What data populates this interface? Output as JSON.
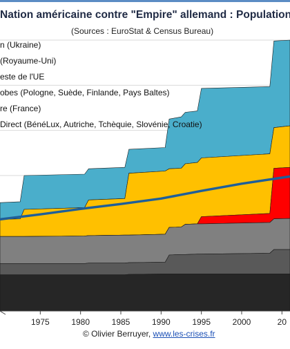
{
  "title": "Nation américaine contre \"Empire\" allemand : Population",
  "subtitle": "(Sources : EuroStat & Census Bureau)",
  "credit": {
    "text": "© Olivier Berruyer, ",
    "link": "www.les-crises.fr"
  },
  "colors": {
    "background": "#ffffff",
    "border": "#5b8cc4",
    "ukraine": "#ffffff",
    "royaume_uni": "#ffffff",
    "reste_ue": "#4aaecb",
    "satellites": "#ffc000",
    "france": "#ff0000",
    "direct": "#808080",
    "direct_dark": "#595959",
    "germany": "#262626",
    "usa_line": "#1f5f99",
    "gridline": "#d9d9d9"
  },
  "chart_data": {
    "type": "area",
    "title": "Nation américaine contre \"Empire\" allemand : Population",
    "subtitle": "(Sources : EuroStat & Census Bureau)",
    "x_tick_labels": [
      "1975",
      "1980",
      "1985",
      "1990",
      "1995",
      "2000",
      "20"
    ],
    "xlim": [
      1970,
      2006
    ],
    "ylim": [
      0,
      600
    ],
    "ylabel": "",
    "xlabel": "",
    "legend": [
      {
        "label": "n (Ukraine)",
        "color": "#ffffff"
      },
      {
        "label": "(Royaume-Uni)",
        "color": "#ffffff"
      },
      {
        "label": "este de l'UE",
        "color": "#4aaecb"
      },
      {
        "label": "obes (Pologne, Suède, Finlande, Pays Baltes)",
        "color": "#ffc000"
      },
      {
        "label": "re (France)",
        "color": "#ff0000"
      },
      {
        "label": "Direct (BénéLux, Autriche, Tchèquie, Slovénie, Croatie)",
        "color": "#808080"
      }
    ],
    "legend_position": "top-left",
    "x": [
      1970,
      1972.5,
      1973,
      1980.5,
      1981,
      1985.5,
      1986,
      1990.5,
      1991,
      1992.5,
      1993,
      1994.5,
      1995,
      2003.5,
      2004,
      2006
    ],
    "series": [
      {
        "key": "germany",
        "values": [
          80,
          80,
          80,
          80,
          80,
          80,
          81,
          82,
          82,
          82,
          82,
          82,
          82,
          82,
          82,
          82
        ]
      },
      {
        "key": "direct_dark",
        "values": [
          105,
          105,
          105,
          105,
          106,
          106,
          107,
          108,
          124,
          125,
          125,
          126,
          126,
          128,
          136,
          136
        ]
      },
      {
        "key": "direct",
        "values": [
          165,
          165,
          165,
          166,
          167,
          168,
          168,
          170,
          185,
          186,
          192,
          193,
          193,
          196,
          204,
          205
        ]
      },
      {
        "key": "france",
        "values": [
          165,
          165,
          165,
          166,
          167,
          168,
          168,
          170,
          185,
          186,
          192,
          193,
          209,
          216,
          316,
          318
        ]
      },
      {
        "key": "satellites",
        "values": [
          203,
          204,
          225,
          229,
          246,
          249,
          305,
          310,
          315,
          316,
          326,
          329,
          339,
          348,
          406,
          410
        ]
      },
      {
        "key": "reste_ue",
        "values": [
          240,
          242,
          300,
          303,
          315,
          318,
          358,
          362,
          425,
          430,
          440,
          443,
          493,
          497,
          598,
          600
        ]
      }
    ],
    "usa_line": {
      "name": "",
      "x": [
        1970,
        1975,
        1980,
        1985,
        1990,
        1995,
        2000,
        2006
      ],
      "values": [
        203,
        214,
        226,
        237,
        249,
        266,
        282,
        298
      ]
    }
  }
}
